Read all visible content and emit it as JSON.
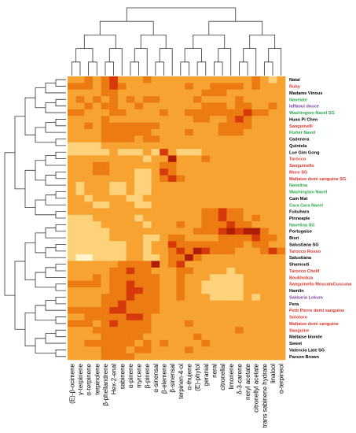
{
  "chart_data": {
    "type": "heatmap",
    "title": "",
    "xlabel": "",
    "ylabel": "",
    "colormap": [
      "#fff4cc",
      "#fdd27a",
      "#f7a331",
      "#ec7b12",
      "#d63a0b",
      "#b01d05"
    ],
    "colors": {
      "black": "#000000",
      "red": "#e0342a",
      "green": "#2aa84a",
      "purple": "#7b3fa0"
    },
    "columns": [
      "(E)-β-ocimene",
      "γ-terpinene",
      "α-terpinene",
      "terpinolene",
      "β-phellandrene",
      "Hex-2-enal",
      "sabinene",
      "α-pinene",
      "myrcene",
      "β-pinene",
      "α-sinensal",
      "β-elemene",
      "β-sinensal",
      "terpinen-4-ol",
      "α-thujene",
      "(E)-phytol",
      "geranial",
      "neral",
      "citronellal",
      "limonene",
      "δ-3-carene",
      "neryl acetate",
      "citronellyl acetate",
      "trans sabinene hydrate",
      "linalool",
      "α-terpineol"
    ],
    "rows": [
      {
        "name": "Natal",
        "color": "black"
      },
      {
        "name": "Ruby",
        "color": "red"
      },
      {
        "name": "Madame Vinous",
        "color": "black"
      },
      {
        "name": "Navelate",
        "color": "green"
      },
      {
        "name": "Iaffaoui douce",
        "color": "purple"
      },
      {
        "name": "Washington Navel SG",
        "color": "green"
      },
      {
        "name": "Huan Pi Chen",
        "color": "black"
      },
      {
        "name": "Sanguinelli",
        "color": "red"
      },
      {
        "name": "Fisher Navel",
        "color": "green"
      },
      {
        "name": "Cadenera",
        "color": "black"
      },
      {
        "name": "Quintela",
        "color": "black"
      },
      {
        "name": "Lue Gim Gong",
        "color": "black"
      },
      {
        "name": "Tarocco",
        "color": "red"
      },
      {
        "name": "Sanguinello",
        "color": "red"
      },
      {
        "name": "Moro SG",
        "color": "red"
      },
      {
        "name": "Maltaise demi sanguine SG",
        "color": "red"
      },
      {
        "name": "Navelina",
        "color": "green"
      },
      {
        "name": "Washington Navel",
        "color": "green"
      },
      {
        "name": "Cam Mat",
        "color": "black"
      },
      {
        "name": "Cara Cara Navel",
        "color": "green"
      },
      {
        "name": "Fukuhara",
        "color": "black"
      },
      {
        "name": "Pinneaple",
        "color": "black"
      },
      {
        "name": "Navelina SG",
        "color": "green"
      },
      {
        "name": "Portugaise",
        "color": "black"
      },
      {
        "name": "Bisri",
        "color": "black"
      },
      {
        "name": "Salustiana SG",
        "color": "black"
      },
      {
        "name": "Tarocco Rosso",
        "color": "red"
      },
      {
        "name": "Salustiana",
        "color": "black"
      },
      {
        "name": "Shamouti",
        "color": "black"
      },
      {
        "name": "Tarocco Chelif",
        "color": "red"
      },
      {
        "name": "Boukhobza",
        "color": "red"
      },
      {
        "name": "Sanguinello MoscataCuscuna",
        "color": "red"
      },
      {
        "name": "Hamlin",
        "color": "black"
      },
      {
        "name": "Sakkaria Lokum",
        "color": "purple"
      },
      {
        "name": "Pera",
        "color": "black"
      },
      {
        "name": "Petit Pierre demi sanguine",
        "color": "red"
      },
      {
        "name": "Solotoro",
        "color": "red"
      },
      {
        "name": "Maltaise demi sanguine",
        "color": "red"
      },
      {
        "name": "Sanguine",
        "color": "red"
      },
      {
        "name": "Maltaise blonde",
        "color": "black"
      },
      {
        "name": "Sweet",
        "color": "black"
      },
      {
        "name": "Valencia Late SG",
        "color": "black"
      },
      {
        "name": "Parson Brown",
        "color": "black"
      }
    ],
    "values": [
      [
        2,
        2,
        3,
        2,
        3,
        4,
        2,
        2,
        2,
        3,
        2,
        2,
        2,
        2,
        2,
        2,
        2,
        2,
        2,
        2,
        2,
        2,
        3,
        2,
        1,
        2
      ],
      [
        3,
        3,
        3,
        2,
        3,
        4,
        3,
        2,
        2,
        2,
        2,
        2,
        2,
        2,
        3,
        2,
        2,
        3,
        3,
        3,
        3,
        2,
        3,
        2,
        2,
        2
      ],
      [
        2,
        2,
        2,
        2,
        3,
        3,
        2,
        2,
        2,
        2,
        2,
        2,
        2,
        2,
        2,
        2,
        3,
        3,
        3,
        2,
        2,
        2,
        2,
        2,
        2,
        2
      ],
      [
        2,
        3,
        2,
        3,
        2,
        3,
        2,
        3,
        2,
        3,
        3,
        2,
        2,
        2,
        2,
        3,
        2,
        2,
        2,
        2,
        3,
        2,
        2,
        2,
        2,
        2
      ],
      [
        2,
        2,
        3,
        2,
        3,
        3,
        2,
        2,
        3,
        2,
        2,
        2,
        2,
        2,
        2,
        2,
        3,
        3,
        3,
        2,
        3,
        3,
        2,
        2,
        3,
        2
      ],
      [
        3,
        3,
        2,
        2,
        2,
        3,
        3,
        2,
        2,
        2,
        2,
        3,
        2,
        2,
        3,
        3,
        3,
        3,
        3,
        3,
        3,
        4,
        3,
        3,
        2,
        2
      ],
      [
        2,
        2,
        2,
        2,
        3,
        2,
        2,
        2,
        2,
        2,
        2,
        2,
        2,
        2,
        2,
        3,
        3,
        2,
        2,
        3,
        4,
        3,
        2,
        2,
        2,
        2
      ],
      [
        2,
        2,
        3,
        2,
        3,
        3,
        3,
        3,
        3,
        3,
        3,
        2,
        2,
        2,
        2,
        2,
        2,
        2,
        3,
        3,
        3,
        3,
        2,
        2,
        2,
        2
      ],
      [
        2,
        2,
        2,
        2,
        3,
        3,
        3,
        3,
        3,
        3,
        2,
        2,
        2,
        2,
        3,
        2,
        2,
        2,
        3,
        3,
        3,
        2,
        2,
        2,
        2,
        2
      ],
      [
        2,
        2,
        2,
        2,
        3,
        3,
        3,
        3,
        2,
        3,
        3,
        2,
        2,
        2,
        2,
        2,
        2,
        2,
        2,
        2,
        2,
        2,
        2,
        2,
        2,
        2
      ],
      [
        1,
        1,
        1,
        1,
        2,
        2,
        2,
        2,
        2,
        2,
        2,
        2,
        2,
        2,
        2,
        2,
        2,
        2,
        2,
        2,
        2,
        2,
        2,
        2,
        2,
        2
      ],
      [
        1,
        1,
        1,
        1,
        1,
        2,
        1,
        1,
        1,
        2,
        1,
        4,
        2,
        1,
        1,
        1,
        2,
        2,
        2,
        2,
        2,
        2,
        2,
        2,
        2,
        2
      ],
      [
        2,
        2,
        2,
        2,
        2,
        2,
        2,
        2,
        2,
        1,
        2,
        2,
        5,
        2,
        2,
        2,
        3,
        2,
        2,
        2,
        2,
        2,
        2,
        2,
        2,
        2
      ],
      [
        2,
        2,
        2,
        3,
        3,
        2,
        2,
        2,
        2,
        2,
        2,
        3,
        3,
        2,
        2,
        2,
        2,
        2,
        2,
        2,
        2,
        2,
        2,
        2,
        2,
        2
      ],
      [
        2,
        2,
        2,
        3,
        3,
        2,
        2,
        2,
        1,
        1,
        2,
        4,
        3,
        2,
        2,
        2,
        2,
        2,
        2,
        2,
        2,
        2,
        2,
        2,
        2,
        2
      ],
      [
        2,
        2,
        2,
        2,
        2,
        2,
        2,
        2,
        1,
        1,
        2,
        3,
        4,
        3,
        2,
        2,
        2,
        2,
        2,
        2,
        2,
        2,
        2,
        2,
        2,
        2
      ],
      [
        2,
        1,
        2,
        2,
        2,
        1,
        1,
        2,
        1,
        1,
        2,
        2,
        2,
        2,
        2,
        2,
        2,
        2,
        2,
        2,
        2,
        2,
        2,
        2,
        2,
        2
      ],
      [
        2,
        1,
        2,
        2,
        2,
        1,
        1,
        2,
        1,
        1,
        2,
        2,
        2,
        2,
        2,
        2,
        2,
        2,
        2,
        2,
        2,
        2,
        2,
        2,
        2,
        2
      ],
      [
        2,
        2,
        1,
        2,
        2,
        2,
        2,
        1,
        1,
        2,
        2,
        2,
        2,
        2,
        2,
        2,
        2,
        2,
        2,
        2,
        2,
        2,
        2,
        2,
        2,
        2
      ],
      [
        2,
        2,
        2,
        1,
        1,
        2,
        2,
        2,
        1,
        1,
        2,
        2,
        2,
        2,
        2,
        2,
        2,
        2,
        2,
        2,
        2,
        2,
        2,
        2,
        2,
        2
      ],
      [
        2,
        2,
        2,
        2,
        2,
        2,
        2,
        2,
        2,
        2,
        2,
        2,
        2,
        2,
        2,
        2,
        3,
        3,
        4,
        3,
        3,
        2,
        2,
        2,
        2,
        2
      ],
      [
        1,
        1,
        1,
        2,
        2,
        2,
        2,
        2,
        1,
        2,
        2,
        2,
        2,
        2,
        2,
        2,
        3,
        3,
        4,
        3,
        3,
        2,
        3,
        2,
        2,
        2
      ],
      [
        1,
        1,
        1,
        1,
        2,
        2,
        2,
        2,
        2,
        1,
        2,
        2,
        2,
        3,
        2,
        2,
        3,
        3,
        3,
        4,
        3,
        3,
        2,
        2,
        2,
        2
      ],
      [
        1,
        1,
        1,
        1,
        1,
        2,
        2,
        2,
        2,
        2,
        2,
        2,
        2,
        2,
        2,
        3,
        3,
        3,
        4,
        5,
        4,
        5,
        5,
        3,
        2,
        2
      ],
      [
        1,
        1,
        1,
        1,
        1,
        2,
        2,
        2,
        2,
        1,
        1,
        2,
        3,
        3,
        2,
        2,
        2,
        2,
        3,
        3,
        3,
        3,
        4,
        3,
        3,
        2
      ],
      [
        1,
        1,
        1,
        1,
        1,
        1,
        1,
        2,
        2,
        1,
        2,
        2,
        4,
        3,
        3,
        3,
        3,
        3,
        3,
        3,
        3,
        2,
        3,
        3,
        2,
        2
      ],
      [
        1,
        1,
        1,
        1,
        1,
        1,
        1,
        2,
        2,
        1,
        2,
        2,
        3,
        4,
        3,
        5,
        4,
        3,
        3,
        3,
        2,
        2,
        2,
        3,
        4,
        3
      ],
      [
        1,
        0,
        0,
        1,
        1,
        1,
        1,
        2,
        2,
        1,
        1,
        2,
        3,
        3,
        5,
        3,
        2,
        2,
        2,
        2,
        2,
        2,
        2,
        2,
        2,
        2
      ],
      [
        2,
        2,
        2,
        2,
        2,
        2,
        3,
        3,
        3,
        3,
        5,
        2,
        3,
        4,
        2,
        2,
        2,
        2,
        2,
        2,
        2,
        2,
        2,
        2,
        2,
        2
      ],
      [
        2,
        2,
        2,
        2,
        2,
        3,
        3,
        4,
        3,
        3,
        2,
        2,
        2,
        3,
        3,
        2,
        2,
        2,
        2,
        1,
        2,
        2,
        2,
        2,
        2,
        2
      ],
      [
        2,
        2,
        2,
        3,
        2,
        3,
        3,
        3,
        3,
        3,
        3,
        2,
        2,
        3,
        2,
        2,
        2,
        1,
        1,
        1,
        1,
        2,
        2,
        2,
        2,
        2
      ],
      [
        3,
        3,
        3,
        3,
        2,
        3,
        3,
        4,
        3,
        3,
        3,
        2,
        2,
        3,
        2,
        2,
        1,
        1,
        1,
        1,
        1,
        2,
        2,
        2,
        2,
        2
      ],
      [
        2,
        2,
        2,
        2,
        2,
        3,
        3,
        4,
        4,
        3,
        3,
        2,
        2,
        3,
        2,
        2,
        1,
        1,
        1,
        1,
        1,
        2,
        2,
        2,
        2,
        2
      ],
      [
        2,
        2,
        2,
        2,
        3,
        3,
        3,
        4,
        3,
        3,
        3,
        2,
        2,
        3,
        2,
        2,
        2,
        1,
        1,
        1,
        1,
        2,
        1,
        2,
        2,
        2
      ],
      [
        2,
        2,
        2,
        2,
        3,
        3,
        4,
        3,
        3,
        3,
        3,
        2,
        2,
        2,
        2,
        2,
        2,
        2,
        2,
        2,
        2,
        2,
        2,
        2,
        2,
        2
      ],
      [
        3,
        3,
        3,
        3,
        3,
        4,
        4,
        3,
        3,
        3,
        3,
        2,
        2,
        2,
        2,
        2,
        2,
        2,
        2,
        2,
        2,
        2,
        2,
        2,
        2,
        2
      ],
      [
        2,
        2,
        3,
        3,
        3,
        3,
        3,
        4,
        4,
        3,
        2,
        2,
        2,
        2,
        2,
        2,
        2,
        2,
        2,
        2,
        2,
        2,
        2,
        2,
        2,
        2
      ],
      [
        3,
        3,
        3,
        2,
        3,
        4,
        3,
        3,
        3,
        3,
        2,
        2,
        2,
        2,
        3,
        2,
        2,
        2,
        2,
        2,
        2,
        2,
        2,
        2,
        2,
        2
      ],
      [
        2,
        2,
        2,
        3,
        3,
        3,
        3,
        3,
        3,
        3,
        2,
        2,
        2,
        2,
        2,
        2,
        2,
        2,
        2,
        2,
        3,
        2,
        2,
        2,
        2,
        2
      ],
      [
        2,
        2,
        2,
        2,
        3,
        3,
        3,
        3,
        3,
        2,
        2,
        2,
        2,
        2,
        2,
        3,
        2,
        2,
        2,
        2,
        2,
        2,
        2,
        2,
        2,
        2
      ],
      [
        2,
        2,
        3,
        3,
        3,
        3,
        3,
        3,
        2,
        3,
        2,
        3,
        2,
        2,
        2,
        2,
        3,
        2,
        2,
        2,
        2,
        2,
        2,
        2,
        2,
        2
      ],
      [
        2,
        2,
        2,
        2,
        3,
        3,
        3,
        2,
        3,
        3,
        2,
        2,
        2,
        2,
        3,
        2,
        2,
        2,
        2,
        2,
        2,
        2,
        2,
        2,
        2,
        2
      ],
      [
        2,
        2,
        2,
        2,
        3,
        3,
        3,
        3,
        2,
        2,
        2,
        2,
        2,
        2,
        2,
        2,
        2,
        2,
        2,
        2,
        2,
        2,
        2,
        2,
        2,
        2
      ]
    ]
  }
}
